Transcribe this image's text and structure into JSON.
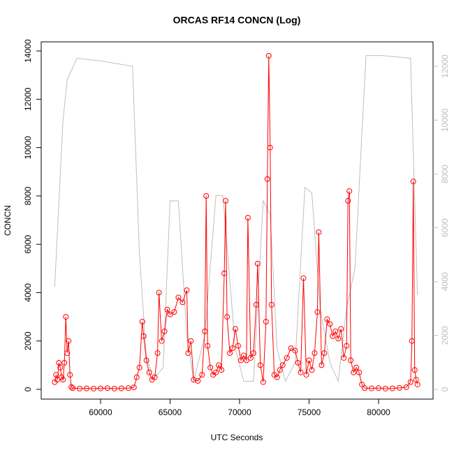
{
  "chart_data": {
    "type": "line",
    "title": "ORCAS RF14 CONCN (Log)",
    "x_label": "UTC Seconds",
    "y_label": "CONCN",
    "xlim": [
      55730,
      83920
    ],
    "xticks": [
      60000,
      65000,
      70000,
      75000,
      80000
    ],
    "ylim": [
      -404,
      14376
    ],
    "yticks": [
      0,
      2000,
      4000,
      6000,
      8000,
      10000,
      12000,
      14000
    ],
    "y2lim": [
      -363,
      12908
    ],
    "y2ticks": [
      0,
      2000,
      4000,
      6000,
      8000,
      10000,
      12000
    ],
    "series": [
      {
        "color": "#ff0000",
        "markers": true,
        "x": [
          56700,
          56800,
          56900,
          57000,
          57100,
          57200,
          57300,
          57400,
          57500,
          57600,
          57700,
          57800,
          57900,
          58000,
          58500,
          59000,
          59500,
          60000,
          60500,
          61000,
          61500,
          62000,
          62400,
          62600,
          62800,
          63000,
          63100,
          63300,
          63500,
          63700,
          63900,
          64100,
          64200,
          64400,
          64600,
          64800,
          65000,
          65300,
          65600,
          65900,
          66200,
          66300,
          66500,
          66700,
          67000,
          67300,
          67500,
          67600,
          67700,
          67900,
          68100,
          68300,
          68500,
          68700,
          68900,
          69000,
          69100,
          69300,
          69500,
          69700,
          69900,
          70100,
          70300,
          70500,
          70600,
          70800,
          71000,
          71200,
          71300,
          71500,
          71700,
          71900,
          72000,
          72100,
          72200,
          72300,
          72500,
          72700,
          72900,
          73100,
          73400,
          73700,
          74000,
          74200,
          74400,
          74600,
          74800,
          75000,
          75200,
          75400,
          75600,
          75700,
          75900,
          76100,
          76300,
          76500,
          76700,
          76900,
          77100,
          77300,
          77500,
          77700,
          77800,
          77900,
          78000,
          78200,
          78400,
          78600,
          78800,
          79000,
          79500,
          80000,
          80500,
          81000,
          81500,
          82000,
          82300,
          82400,
          82500,
          82600,
          82700,
          82800
        ],
        "values": [
          300,
          600,
          400,
          1100,
          900,
          500,
          400,
          1100,
          3000,
          1500,
          2000,
          600,
          100,
          50,
          30,
          40,
          30,
          40,
          50,
          30,
          40,
          50,
          80,
          500,
          900,
          2800,
          2200,
          1200,
          700,
          400,
          500,
          1500,
          4000,
          2000,
          2400,
          3300,
          3100,
          3200,
          3800,
          3600,
          4100,
          1500,
          2000,
          400,
          350,
          600,
          2400,
          8000,
          1800,
          900,
          600,
          700,
          1000,
          800,
          4800,
          7800,
          3000,
          1500,
          1700,
          2500,
          1800,
          1200,
          1400,
          1200,
          7100,
          1300,
          1500,
          3500,
          5200,
          1000,
          300,
          2800,
          8700,
          13800,
          10000,
          3500,
          600,
          500,
          800,
          1000,
          1300,
          1700,
          1600,
          1100,
          700,
          4600,
          600,
          1200,
          800,
          1500,
          3200,
          6500,
          1000,
          1500,
          2900,
          2700,
          2200,
          2400,
          2100,
          2500,
          1300,
          1800,
          7800,
          8200,
          1200,
          700,
          900,
          700,
          200,
          50,
          40,
          50,
          30,
          40,
          60,
          90,
          300,
          2000,
          8600,
          800,
          400,
          200
        ]
      },
      {
        "color": "#bebebe",
        "axis": "y2",
        "markers": false,
        "x": [
          56700,
          57300,
          57600,
          58300,
          60000,
          62300,
          62800,
          63300,
          63800,
          64500,
          65000,
          65600,
          66200,
          66700,
          67500,
          68300,
          68800,
          69700,
          70300,
          71000,
          71700,
          72200,
          72700,
          73300,
          74000,
          74700,
          75200,
          75800,
          76500,
          77100,
          77700,
          78300,
          78800,
          79100,
          80300,
          82300,
          82800
        ],
        "values": [
          3800,
          10000,
          11500,
          12300,
          12200,
          12000,
          5000,
          1200,
          400,
          800,
          7000,
          7000,
          2000,
          300,
          2000,
          7200,
          7200,
          1500,
          300,
          300,
          7000,
          6500,
          1500,
          300,
          1000,
          7500,
          7300,
          3000,
          1000,
          300,
          3000,
          4500,
          9500,
          12400,
          12400,
          12300,
          3500
        ]
      }
    ]
  }
}
